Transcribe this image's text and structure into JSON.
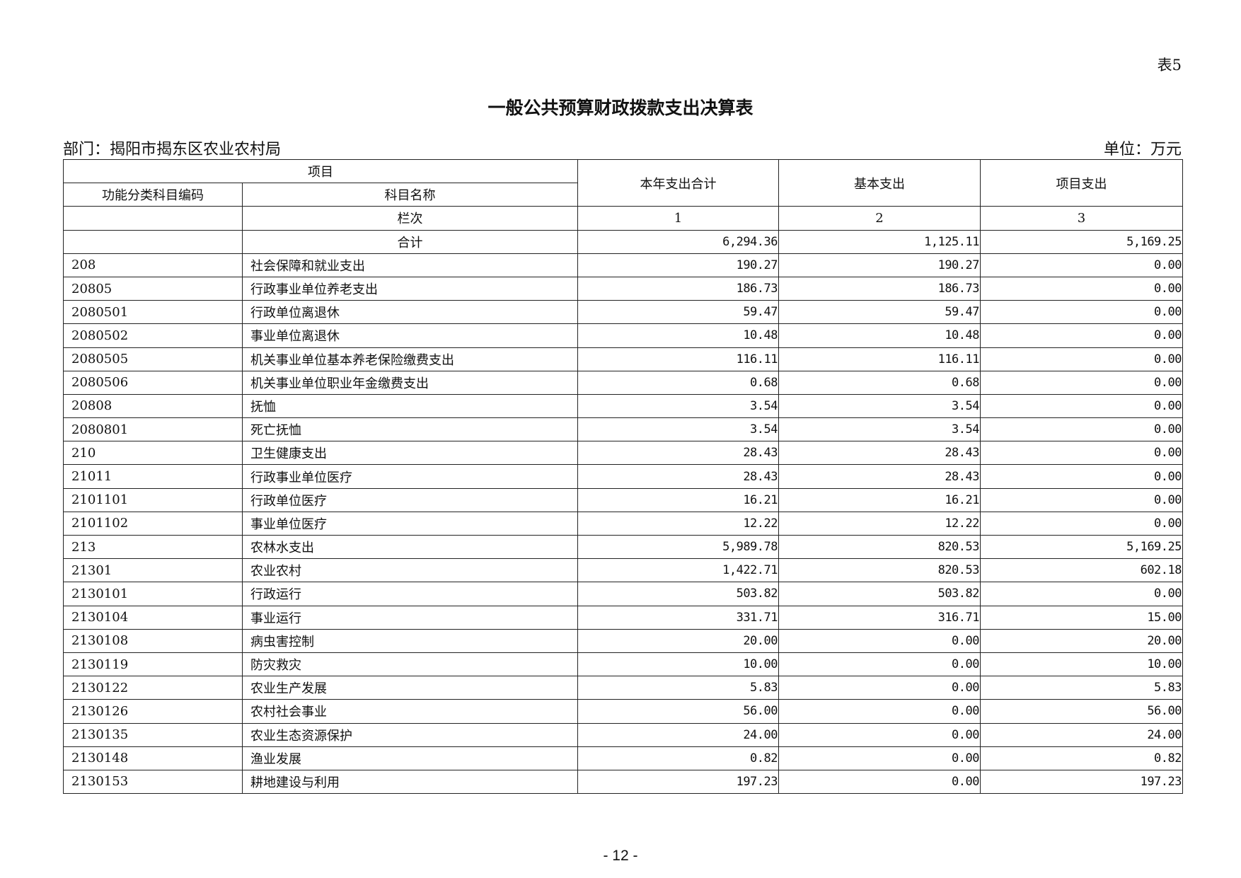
{
  "table_tag": "表5",
  "title": "一般公共预算财政拨款支出决算表",
  "department": "部门：揭阳市揭东区农业农村局",
  "unit": "单位：万元",
  "header": {
    "project": "项目",
    "code": "功能分类科目编码",
    "name": "科目名称",
    "total": "本年支出合计",
    "basic": "基本支出",
    "project_exp": "项目支出",
    "column_index_label": "栏次",
    "col1": "1",
    "col2": "2",
    "col3": "3"
  },
  "total_row": {
    "label": "合计",
    "total": "6,294.36",
    "basic": "1,125.11",
    "project": "5,169.25"
  },
  "rows": [
    {
      "code": "208",
      "name": "社会保障和就业支出",
      "total": "190.27",
      "basic": "190.27",
      "project": "0.00"
    },
    {
      "code": "20805",
      "name": "行政事业单位养老支出",
      "total": "186.73",
      "basic": "186.73",
      "project": "0.00"
    },
    {
      "code": "2080501",
      "name": "行政单位离退休",
      "total": "59.47",
      "basic": "59.47",
      "project": "0.00"
    },
    {
      "code": "2080502",
      "name": "事业单位离退休",
      "total": "10.48",
      "basic": "10.48",
      "project": "0.00"
    },
    {
      "code": "2080505",
      "name": "机关事业单位基本养老保险缴费支出",
      "total": "116.11",
      "basic": "116.11",
      "project": "0.00"
    },
    {
      "code": "2080506",
      "name": "机关事业单位职业年金缴费支出",
      "total": "0.68",
      "basic": "0.68",
      "project": "0.00"
    },
    {
      "code": "20808",
      "name": "抚恤",
      "total": "3.54",
      "basic": "3.54",
      "project": "0.00"
    },
    {
      "code": "2080801",
      "name": "死亡抚恤",
      "total": "3.54",
      "basic": "3.54",
      "project": "0.00"
    },
    {
      "code": "210",
      "name": "卫生健康支出",
      "total": "28.43",
      "basic": "28.43",
      "project": "0.00"
    },
    {
      "code": "21011",
      "name": "行政事业单位医疗",
      "total": "28.43",
      "basic": "28.43",
      "project": "0.00"
    },
    {
      "code": "2101101",
      "name": "行政单位医疗",
      "total": "16.21",
      "basic": "16.21",
      "project": "0.00"
    },
    {
      "code": "2101102",
      "name": "事业单位医疗",
      "total": "12.22",
      "basic": "12.22",
      "project": "0.00"
    },
    {
      "code": "213",
      "name": "农林水支出",
      "total": "5,989.78",
      "basic": "820.53",
      "project": "5,169.25"
    },
    {
      "code": "21301",
      "name": "农业农村",
      "total": "1,422.71",
      "basic": "820.53",
      "project": "602.18"
    },
    {
      "code": "2130101",
      "name": "行政运行",
      "total": "503.82",
      "basic": "503.82",
      "project": "0.00"
    },
    {
      "code": "2130104",
      "name": "事业运行",
      "total": "331.71",
      "basic": "316.71",
      "project": "15.00"
    },
    {
      "code": "2130108",
      "name": "病虫害控制",
      "total": "20.00",
      "basic": "0.00",
      "project": "20.00"
    },
    {
      "code": "2130119",
      "name": "防灾救灾",
      "total": "10.00",
      "basic": "0.00",
      "project": "10.00"
    },
    {
      "code": "2130122",
      "name": "农业生产发展",
      "total": "5.83",
      "basic": "0.00",
      "project": "5.83"
    },
    {
      "code": "2130126",
      "name": "农村社会事业",
      "total": "56.00",
      "basic": "0.00",
      "project": "56.00"
    },
    {
      "code": "2130135",
      "name": "农业生态资源保护",
      "total": "24.00",
      "basic": "0.00",
      "project": "24.00"
    },
    {
      "code": "2130148",
      "name": "渔业发展",
      "total": "0.82",
      "basic": "0.00",
      "project": "0.82"
    },
    {
      "code": "2130153",
      "name": "耕地建设与利用",
      "total": "197.23",
      "basic": "0.00",
      "project": "197.23"
    }
  ],
  "page_number": "- 12 -"
}
